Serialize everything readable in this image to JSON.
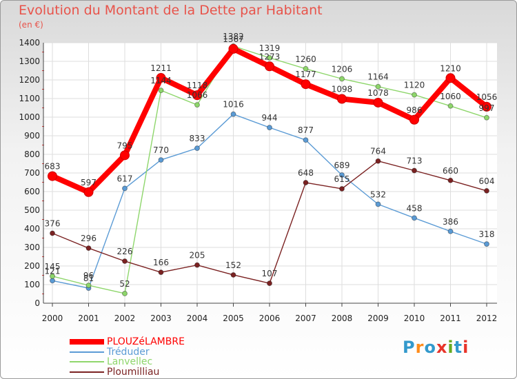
{
  "title": "Evolution du Montant de la Dette par Habitant",
  "unit": "(en €)",
  "logo": {
    "letters": [
      "P",
      "r",
      "o",
      "x",
      "i",
      "t",
      "i"
    ],
    "colors": [
      "#3399cc",
      "#ff8c1a",
      "#3399cc",
      "#e8342a",
      "#66aa22",
      "#3399cc",
      "#e8342a"
    ]
  },
  "chart_data": {
    "type": "line",
    "x": [
      "2000",
      "2001",
      "2002",
      "2003",
      "2004",
      "2005",
      "2006",
      "2007",
      "2008",
      "2009",
      "2010",
      "2011",
      "2012"
    ],
    "ylim": [
      0,
      1400
    ],
    "yticks": [
      0,
      100,
      200,
      300,
      400,
      500,
      600,
      700,
      800,
      900,
      1000,
      1100,
      1200,
      1300,
      1400
    ],
    "grid": true,
    "legend_position": "bottom-left",
    "series": [
      {
        "name": "PLOUZéLAMBRE",
        "color": "#ff0000",
        "values": [
          683,
          597,
          795,
          1211,
          1118,
          1367,
          1273,
          1177,
          1098,
          1078,
          986,
          1210,
          1056
        ]
      },
      {
        "name": "Tréduder",
        "color": "#5b9bd5",
        "values": [
          121,
          81,
          617,
          770,
          833,
          1016,
          944,
          877,
          689,
          532,
          458,
          386,
          318
        ]
      },
      {
        "name": "Lanvellec",
        "color": "#8ed66b",
        "values": [
          145,
          96,
          52,
          1144,
          1066,
          1382,
          1319,
          1260,
          1206,
          1164,
          1120,
          1060,
          997
        ]
      },
      {
        "name": "Ploumilliau",
        "color": "#7b2222",
        "values": [
          376,
          296,
          226,
          166,
          205,
          152,
          107,
          648,
          615,
          764,
          713,
          660,
          604
        ]
      }
    ]
  }
}
